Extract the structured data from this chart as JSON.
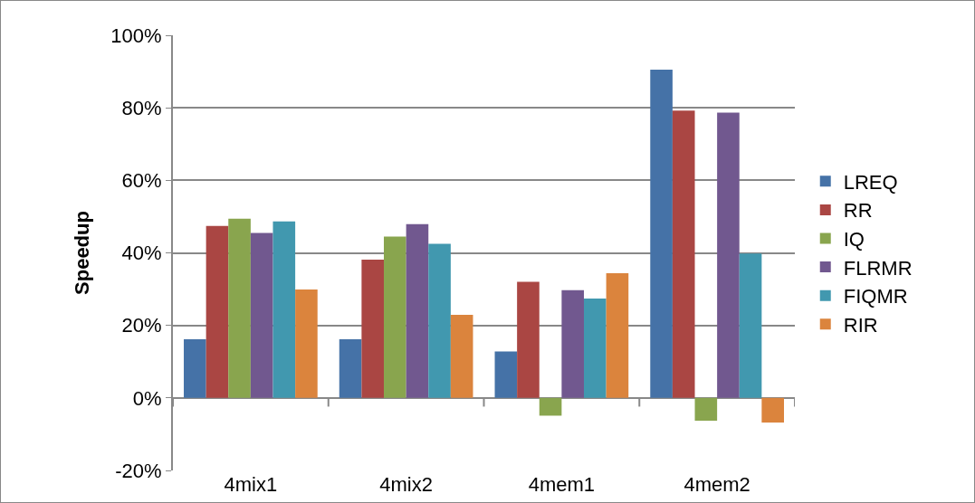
{
  "chart_data": {
    "type": "bar",
    "ylabel": "Speedup",
    "categories": [
      "4mix1",
      "4mix2",
      "4mem1",
      "4mem2"
    ],
    "series": [
      {
        "name": "LREQ",
        "color": "#4572a7",
        "values": [
          16.2,
          16.2,
          12.8,
          90.5
        ]
      },
      {
        "name": "RR",
        "color": "#aa4643",
        "values": [
          47.4,
          38.1,
          32,
          79.2
        ]
      },
      {
        "name": "IQ",
        "color": "#89a54e",
        "values": [
          49.4,
          44.5,
          -4.9,
          -6.3
        ]
      },
      {
        "name": "FLRMR",
        "color": "#71588f",
        "values": [
          45.5,
          47.9,
          29.7,
          78.7
        ]
      },
      {
        "name": "FIQMR",
        "color": "#4198af",
        "values": [
          48.7,
          42.5,
          27.4,
          39.8
        ]
      },
      {
        "name": "RIR",
        "color": "#db843d",
        "values": [
          29.9,
          22.9,
          34.4,
          -6.8
        ]
      }
    ],
    "ylim": [
      -20,
      100
    ],
    "yticks": [
      {
        "value": -20,
        "label": "-20%"
      },
      {
        "value": 0,
        "label": "0%"
      },
      {
        "value": 20,
        "label": "20%"
      },
      {
        "value": 40,
        "label": "40%"
      },
      {
        "value": 60,
        "label": "60%"
      },
      {
        "value": 80,
        "label": "80%"
      },
      {
        "value": 100,
        "label": "100%"
      }
    ],
    "grid": "y",
    "legend": "right"
  }
}
